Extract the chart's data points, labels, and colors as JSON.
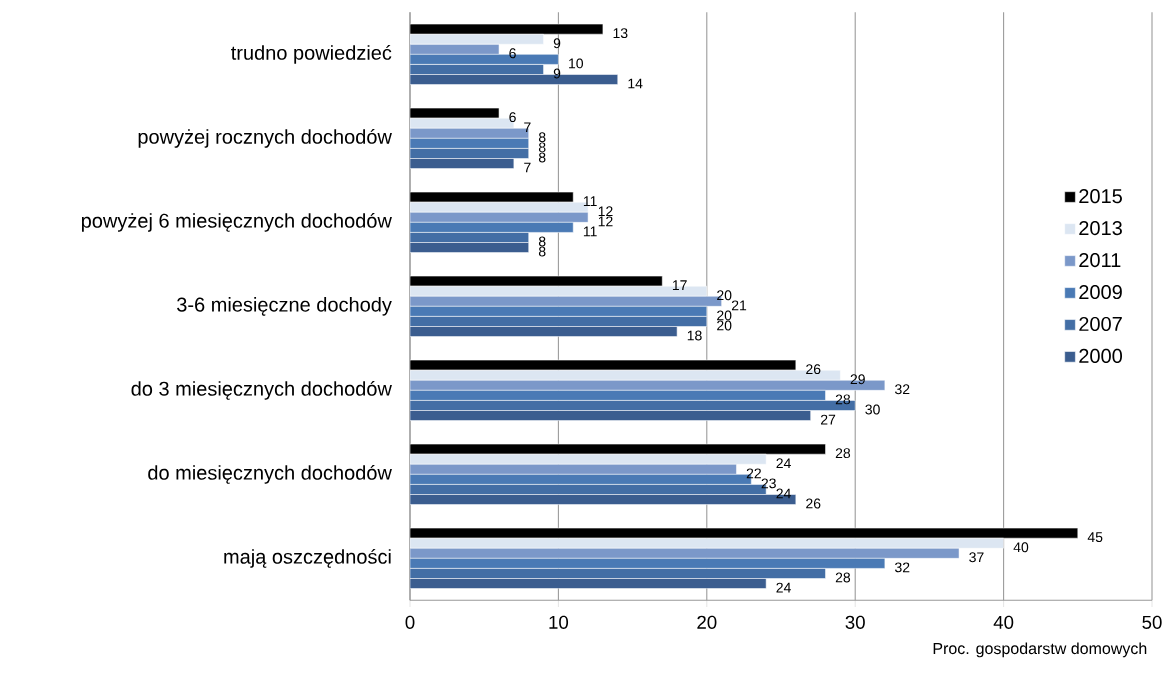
{
  "chart_data": {
    "type": "bar",
    "orientation": "horizontal",
    "categories": [
      "trudno powiedzieć",
      "powyżej rocznych dochodów",
      "powyżej 6 miesięcznych dochodów",
      "3-6 miesięczne dochody",
      "do 3 miesięcznych dochodów",
      "do miesięcznych dochodów",
      "mają oszczędności"
    ],
    "series": [
      {
        "name": "2015",
        "color": "#000000",
        "values": [
          13,
          6,
          11,
          17,
          26,
          28,
          45
        ]
      },
      {
        "name": "2013",
        "color": "#dce6f2",
        "values": [
          9,
          7,
          12,
          20,
          29,
          24,
          40
        ]
      },
      {
        "name": "2011",
        "color": "#7b98c9",
        "values": [
          6,
          8,
          12,
          21,
          32,
          22,
          37
        ]
      },
      {
        "name": "2009",
        "color": "#4a7ab5",
        "values": [
          10,
          8,
          11,
          20,
          28,
          23,
          32
        ]
      },
      {
        "name": "2007",
        "color": "#436ea5",
        "values": [
          9,
          8,
          8,
          20,
          30,
          24,
          28
        ]
      },
      {
        "name": "2000",
        "color": "#3b5d8f",
        "values": [
          14,
          7,
          8,
          18,
          27,
          26,
          24
        ]
      }
    ],
    "xlim": [
      0,
      50
    ],
    "xticks": [
      0,
      10,
      20,
      30,
      40,
      50
    ],
    "xlabel": "Proc. gospodarstw domowych",
    "grid": "x",
    "legend": "right",
    "data_labels": true
  }
}
